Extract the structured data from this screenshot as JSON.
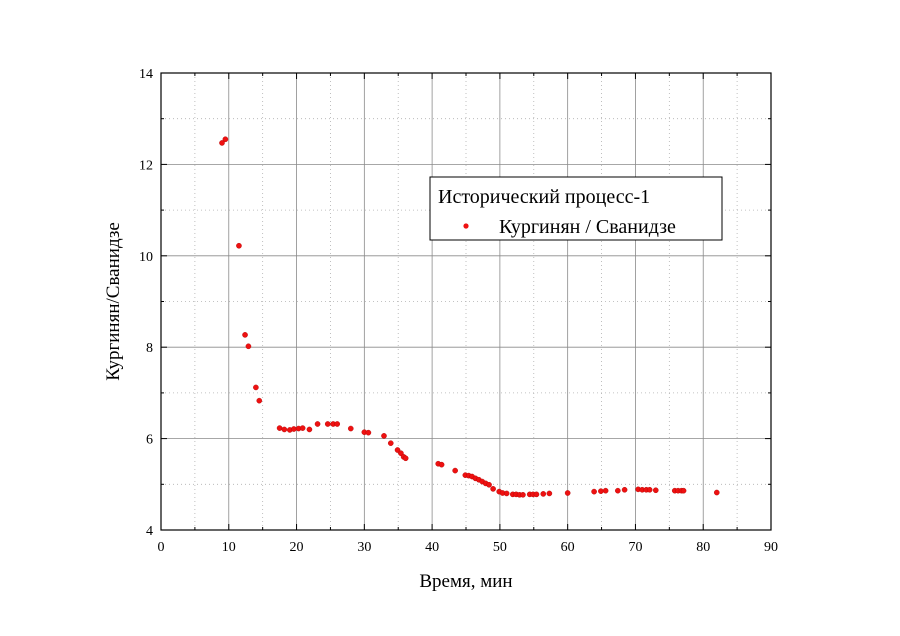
{
  "chart_data": {
    "type": "scatter",
    "title": "",
    "xlabel": "Время, мин",
    "ylabel": "Кургинян/Сванидзе",
    "xlim": [
      0,
      90
    ],
    "ylim": [
      4,
      14
    ],
    "xticks": [
      "0",
      "10",
      "20",
      "30",
      "40",
      "50",
      "60",
      "70",
      "80",
      "90"
    ],
    "yticks": [
      "4",
      "6",
      "8",
      "10",
      "12",
      "14"
    ],
    "grid": true,
    "legend": {
      "title": "Исторический процесс-1",
      "placement": "top-right",
      "entries": [
        "Кургинян / Сванидзе"
      ]
    },
    "series": [
      {
        "name": "Кургинян / Сванидзе",
        "color": "#ee1111",
        "points": [
          [
            9.0,
            12.47
          ],
          [
            9.5,
            12.55
          ],
          [
            11.5,
            10.22
          ],
          [
            12.4,
            8.27
          ],
          [
            12.9,
            8.02
          ],
          [
            14.0,
            7.12
          ],
          [
            14.5,
            6.83
          ],
          [
            17.5,
            6.23
          ],
          [
            18.2,
            6.2
          ],
          [
            19.0,
            6.19
          ],
          [
            19.6,
            6.21
          ],
          [
            20.3,
            6.22
          ],
          [
            20.9,
            6.23
          ],
          [
            21.9,
            6.2
          ],
          [
            23.1,
            6.32
          ],
          [
            24.6,
            6.32
          ],
          [
            25.4,
            6.32
          ],
          [
            26.0,
            6.32
          ],
          [
            28.0,
            6.22
          ],
          [
            30.0,
            6.14
          ],
          [
            30.6,
            6.13
          ],
          [
            32.9,
            6.06
          ],
          [
            33.9,
            5.9
          ],
          [
            34.9,
            5.75
          ],
          [
            35.4,
            5.68
          ],
          [
            35.8,
            5.6
          ],
          [
            36.1,
            5.57
          ],
          [
            40.9,
            5.45
          ],
          [
            41.4,
            5.43
          ],
          [
            43.4,
            5.3
          ],
          [
            44.9,
            5.2
          ],
          [
            45.4,
            5.19
          ],
          [
            45.9,
            5.17
          ],
          [
            46.4,
            5.13
          ],
          [
            46.9,
            5.1
          ],
          [
            47.4,
            5.06
          ],
          [
            47.9,
            5.02
          ],
          [
            48.4,
            4.99
          ],
          [
            49.0,
            4.9
          ],
          [
            49.9,
            4.84
          ],
          [
            50.4,
            4.81
          ],
          [
            51.0,
            4.8
          ],
          [
            51.9,
            4.78
          ],
          [
            52.4,
            4.78
          ],
          [
            52.9,
            4.77
          ],
          [
            53.4,
            4.77
          ],
          [
            54.4,
            4.78
          ],
          [
            54.9,
            4.78
          ],
          [
            55.4,
            4.78
          ],
          [
            56.4,
            4.79
          ],
          [
            57.3,
            4.8
          ],
          [
            60.0,
            4.81
          ],
          [
            63.9,
            4.84
          ],
          [
            64.9,
            4.85
          ],
          [
            65.6,
            4.86
          ],
          [
            67.4,
            4.86
          ],
          [
            68.4,
            4.88
          ],
          [
            70.4,
            4.89
          ],
          [
            71.0,
            4.88
          ],
          [
            71.6,
            4.88
          ],
          [
            72.1,
            4.88
          ],
          [
            73.0,
            4.87
          ],
          [
            75.8,
            4.86
          ],
          [
            76.3,
            4.86
          ],
          [
            76.8,
            4.86
          ],
          [
            77.1,
            4.86
          ],
          [
            82.0,
            4.82
          ]
        ]
      }
    ]
  }
}
